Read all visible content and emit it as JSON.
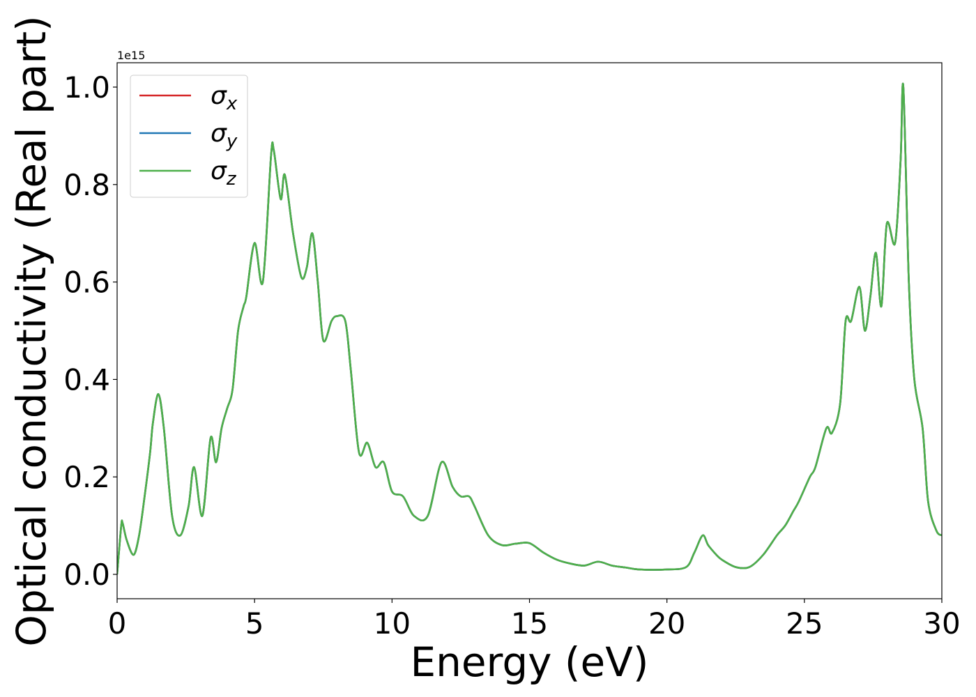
{
  "chart_data": {
    "type": "line",
    "xlabel": "Energy (eV)",
    "ylabel": "Optical conductivity (Real part)",
    "offset_text": "1e15",
    "xlim": [
      0,
      30
    ],
    "ylim": [
      -0.05,
      1.05
    ],
    "y_scale_factor": 1000000000000000.0,
    "xticks": [
      0,
      5,
      10,
      15,
      20,
      25,
      30
    ],
    "xtick_labels": [
      "0",
      "5",
      "10",
      "15",
      "20",
      "25",
      "30"
    ],
    "yticks": [
      0.0,
      0.2,
      0.4,
      0.6,
      0.8,
      1.0
    ],
    "ytick_labels": [
      "0.0",
      "0.2",
      "0.4",
      "0.6",
      "0.8",
      "1.0"
    ],
    "grid": false,
    "legend_position": "top-left",
    "series": [
      {
        "name": "σx",
        "label_base": "σ",
        "label_sub": "x",
        "color": "#d62728",
        "x": [
          0.0,
          0.15,
          0.2,
          0.35,
          0.6,
          0.8,
          1.0,
          1.2,
          1.3,
          1.5,
          1.7,
          2.0,
          2.3,
          2.6,
          2.8,
          3.1,
          3.4,
          3.6,
          3.8,
          4.0,
          4.2,
          4.4,
          4.6,
          4.7,
          5.0,
          5.3,
          5.6,
          5.7,
          5.95,
          6.1,
          6.4,
          6.7,
          6.9,
          7.1,
          7.3,
          7.5,
          7.8,
          8.0,
          8.3,
          8.5,
          8.8,
          9.1,
          9.4,
          9.7,
          10.0,
          10.4,
          10.8,
          11.3,
          11.8,
          12.2,
          12.5,
          12.8,
          13.0,
          13.5,
          14.0,
          14.5,
          15.0,
          15.5,
          16.0,
          16.5,
          17.0,
          17.5,
          18.0,
          18.5,
          19.0,
          20.0,
          20.7,
          21.0,
          21.3,
          21.5,
          21.8,
          22.0,
          22.5,
          23.0,
          23.5,
          24.0,
          24.3,
          24.6,
          24.8,
          25.2,
          25.4,
          25.8,
          26.0,
          26.3,
          26.5,
          26.7,
          27.0,
          27.2,
          27.4,
          27.6,
          27.8,
          28.0,
          28.3,
          28.5,
          28.6,
          28.8,
          29.0,
          29.3,
          29.5,
          29.8,
          30.0
        ],
        "y": [
          0.0,
          0.1,
          0.105,
          0.07,
          0.04,
          0.08,
          0.16,
          0.25,
          0.31,
          0.37,
          0.3,
          0.12,
          0.08,
          0.14,
          0.22,
          0.12,
          0.28,
          0.23,
          0.3,
          0.34,
          0.38,
          0.5,
          0.55,
          0.57,
          0.68,
          0.6,
          0.86,
          0.87,
          0.77,
          0.82,
          0.7,
          0.61,
          0.63,
          0.7,
          0.6,
          0.48,
          0.52,
          0.53,
          0.52,
          0.42,
          0.25,
          0.27,
          0.22,
          0.23,
          0.17,
          0.16,
          0.12,
          0.12,
          0.23,
          0.18,
          0.16,
          0.16,
          0.14,
          0.08,
          0.06,
          0.063,
          0.064,
          0.045,
          0.03,
          0.022,
          0.018,
          0.026,
          0.018,
          0.014,
          0.01,
          0.01,
          0.015,
          0.045,
          0.08,
          0.06,
          0.04,
          0.03,
          0.015,
          0.015,
          0.04,
          0.08,
          0.1,
          0.13,
          0.15,
          0.2,
          0.22,
          0.3,
          0.29,
          0.35,
          0.52,
          0.52,
          0.59,
          0.5,
          0.57,
          0.66,
          0.55,
          0.72,
          0.68,
          0.85,
          1.0,
          0.6,
          0.4,
          0.3,
          0.15,
          0.09,
          0.08
        ]
      },
      {
        "name": "σy",
        "label_base": "σ",
        "label_sub": "y",
        "color": "#1f77b4",
        "x": [
          0.0,
          0.15,
          0.2,
          0.35,
          0.6,
          0.8,
          1.0,
          1.2,
          1.3,
          1.5,
          1.7,
          2.0,
          2.3,
          2.6,
          2.8,
          3.1,
          3.4,
          3.6,
          3.8,
          4.0,
          4.2,
          4.4,
          4.6,
          4.7,
          5.0,
          5.3,
          5.6,
          5.7,
          5.95,
          6.1,
          6.4,
          6.7,
          6.9,
          7.1,
          7.3,
          7.5,
          7.8,
          8.0,
          8.3,
          8.5,
          8.8,
          9.1,
          9.4,
          9.7,
          10.0,
          10.4,
          10.8,
          11.3,
          11.8,
          12.2,
          12.5,
          12.8,
          13.0,
          13.5,
          14.0,
          14.5,
          15.0,
          15.5,
          16.0,
          16.5,
          17.0,
          17.5,
          18.0,
          18.5,
          19.0,
          20.0,
          20.7,
          21.0,
          21.3,
          21.5,
          21.8,
          22.0,
          22.5,
          23.0,
          23.5,
          24.0,
          24.3,
          24.6,
          24.8,
          25.2,
          25.4,
          25.8,
          26.0,
          26.3,
          26.5,
          26.7,
          27.0,
          27.2,
          27.4,
          27.6,
          27.8,
          28.0,
          28.3,
          28.5,
          28.6,
          28.8,
          29.0,
          29.3,
          29.5,
          29.8,
          30.0
        ],
        "y": [
          0.0,
          0.1,
          0.105,
          0.07,
          0.04,
          0.08,
          0.16,
          0.25,
          0.31,
          0.37,
          0.3,
          0.12,
          0.08,
          0.14,
          0.22,
          0.12,
          0.28,
          0.23,
          0.3,
          0.34,
          0.38,
          0.5,
          0.55,
          0.57,
          0.68,
          0.6,
          0.86,
          0.87,
          0.77,
          0.82,
          0.7,
          0.61,
          0.63,
          0.7,
          0.6,
          0.48,
          0.52,
          0.53,
          0.52,
          0.42,
          0.25,
          0.27,
          0.22,
          0.23,
          0.17,
          0.16,
          0.12,
          0.12,
          0.23,
          0.18,
          0.16,
          0.16,
          0.14,
          0.08,
          0.06,
          0.063,
          0.064,
          0.045,
          0.03,
          0.022,
          0.018,
          0.026,
          0.018,
          0.014,
          0.01,
          0.01,
          0.015,
          0.045,
          0.08,
          0.06,
          0.04,
          0.03,
          0.015,
          0.015,
          0.04,
          0.08,
          0.1,
          0.13,
          0.15,
          0.2,
          0.22,
          0.3,
          0.29,
          0.35,
          0.52,
          0.52,
          0.59,
          0.5,
          0.57,
          0.66,
          0.55,
          0.72,
          0.68,
          0.85,
          1.0,
          0.6,
          0.4,
          0.3,
          0.15,
          0.09,
          0.08
        ]
      },
      {
        "name": "σz",
        "label_base": "σ",
        "label_sub": "z",
        "color": "#4daf4a",
        "x": [
          0.0,
          0.15,
          0.2,
          0.35,
          0.6,
          0.8,
          1.0,
          1.2,
          1.3,
          1.5,
          1.7,
          2.0,
          2.3,
          2.6,
          2.8,
          3.1,
          3.4,
          3.6,
          3.8,
          4.0,
          4.2,
          4.4,
          4.6,
          4.7,
          5.0,
          5.3,
          5.6,
          5.7,
          5.95,
          6.1,
          6.4,
          6.7,
          6.9,
          7.1,
          7.3,
          7.5,
          7.8,
          8.0,
          8.3,
          8.5,
          8.8,
          9.1,
          9.4,
          9.7,
          10.0,
          10.4,
          10.8,
          11.3,
          11.8,
          12.2,
          12.5,
          12.8,
          13.0,
          13.5,
          14.0,
          14.5,
          15.0,
          15.5,
          16.0,
          16.5,
          17.0,
          17.5,
          18.0,
          18.5,
          19.0,
          20.0,
          20.7,
          21.0,
          21.3,
          21.5,
          21.8,
          22.0,
          22.5,
          23.0,
          23.5,
          24.0,
          24.3,
          24.6,
          24.8,
          25.2,
          25.4,
          25.8,
          26.0,
          26.3,
          26.5,
          26.7,
          27.0,
          27.2,
          27.4,
          27.6,
          27.8,
          28.0,
          28.3,
          28.5,
          28.6,
          28.8,
          29.0,
          29.3,
          29.5,
          29.8,
          30.0
        ],
        "y": [
          0.0,
          0.1,
          0.105,
          0.07,
          0.04,
          0.08,
          0.16,
          0.25,
          0.31,
          0.37,
          0.3,
          0.12,
          0.08,
          0.14,
          0.22,
          0.12,
          0.28,
          0.23,
          0.3,
          0.34,
          0.38,
          0.5,
          0.55,
          0.57,
          0.68,
          0.6,
          0.86,
          0.87,
          0.77,
          0.82,
          0.7,
          0.61,
          0.63,
          0.7,
          0.6,
          0.48,
          0.52,
          0.53,
          0.52,
          0.42,
          0.25,
          0.27,
          0.22,
          0.23,
          0.17,
          0.16,
          0.12,
          0.12,
          0.23,
          0.18,
          0.16,
          0.16,
          0.14,
          0.08,
          0.06,
          0.063,
          0.064,
          0.045,
          0.03,
          0.022,
          0.018,
          0.026,
          0.018,
          0.014,
          0.01,
          0.01,
          0.015,
          0.045,
          0.08,
          0.06,
          0.04,
          0.03,
          0.015,
          0.015,
          0.04,
          0.08,
          0.1,
          0.13,
          0.15,
          0.2,
          0.22,
          0.3,
          0.29,
          0.35,
          0.52,
          0.52,
          0.59,
          0.5,
          0.57,
          0.66,
          0.55,
          0.72,
          0.68,
          0.85,
          1.0,
          0.6,
          0.4,
          0.3,
          0.15,
          0.09,
          0.08
        ]
      }
    ]
  }
}
